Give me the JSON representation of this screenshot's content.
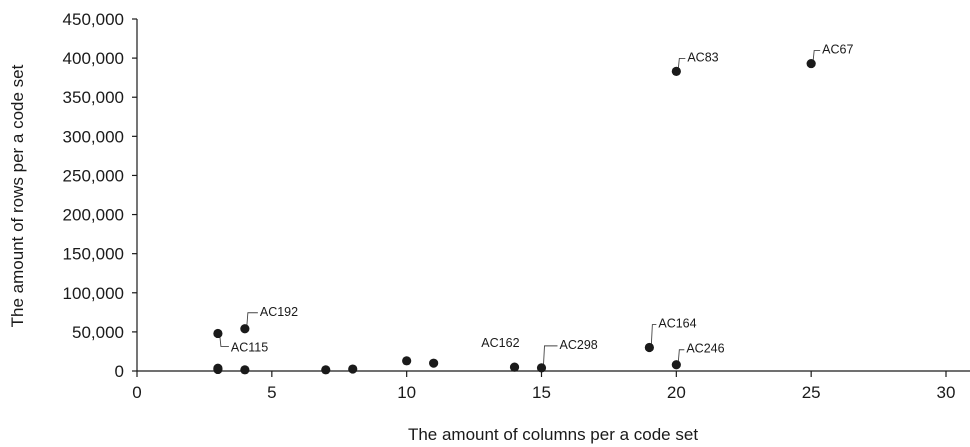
{
  "chart_data": {
    "type": "scatter",
    "title": "",
    "xlabel": "The amount of columns per a code set",
    "ylabel": "The amount of rows per a code set",
    "xlim": [
      0,
      30
    ],
    "ylim": [
      0,
      450000
    ],
    "x_ticks": [
      0,
      5,
      10,
      15,
      20,
      25,
      30
    ],
    "x_tick_labels": [
      "0",
      "5",
      "10",
      "15",
      "20",
      "25",
      "30"
    ],
    "y_ticks": [
      0,
      50000,
      100000,
      150000,
      200000,
      250000,
      300000,
      350000,
      400000,
      450000
    ],
    "y_tick_labels": [
      "0",
      "50,000",
      "100,000",
      "150,000",
      "200,000",
      "250,000",
      "300,000",
      "350,000",
      "400,000",
      "450,000"
    ],
    "grid": false,
    "legend": false,
    "marker_color": "#1a1a1a",
    "points": [
      {
        "x": 25,
        "y": 393000,
        "label": "AC67"
      },
      {
        "x": 20,
        "y": 383000,
        "label": "AC83"
      },
      {
        "x": 4,
        "y": 54000,
        "label": "AC192"
      },
      {
        "x": 3,
        "y": 48000,
        "label": "AC115"
      },
      {
        "x": 19,
        "y": 30000,
        "label": "AC164"
      },
      {
        "x": 20,
        "y": 8000,
        "label": "AC246"
      },
      {
        "x": 14,
        "y": 5000,
        "label": "AC162"
      },
      {
        "x": 15,
        "y": 4000,
        "label": "AC298"
      },
      {
        "x": 3,
        "y": 3500,
        "label": ""
      },
      {
        "x": 3,
        "y": 2000,
        "label": ""
      },
      {
        "x": 4,
        "y": 1500,
        "label": ""
      },
      {
        "x": 7,
        "y": 1500,
        "label": ""
      },
      {
        "x": 8,
        "y": 2500,
        "label": ""
      },
      {
        "x": 10,
        "y": 13000,
        "label": ""
      },
      {
        "x": 11,
        "y": 10000,
        "label": ""
      }
    ]
  }
}
